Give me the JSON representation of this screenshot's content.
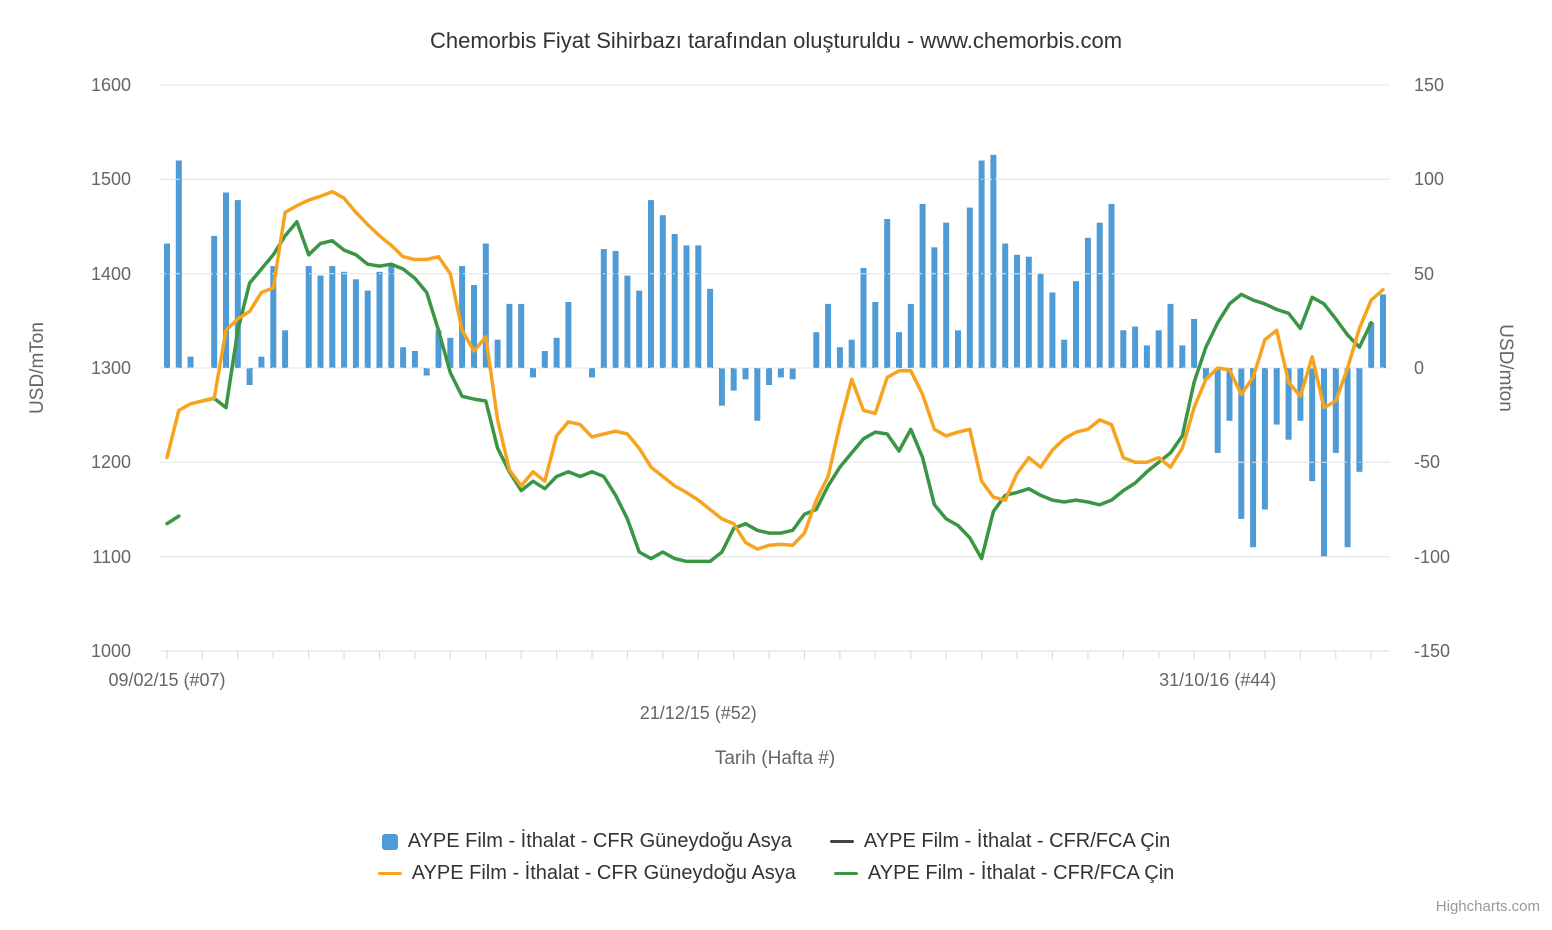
{
  "title": "Chemorbis Fiyat Sihirbazı tarafından oluşturuldu - www.chemorbis.com",
  "credits": "Highcharts.com",
  "chart_data": {
    "type": "combo-column-line",
    "colors": {
      "grid": "#E6E6E6",
      "axis_line": "#CCD6EB"
    },
    "xaxis": {
      "title": "Tarih (Hafta #)",
      "tick_labels": [
        {
          "index": 0,
          "text": "09/02/15 (#07)",
          "row": 0
        },
        {
          "index": 45,
          "text": "21/12/15 (#52)",
          "row": 1
        },
        {
          "index": 89,
          "text": "31/10/16 (#44)",
          "row": 0
        }
      ]
    },
    "yaxis_left": {
      "title": "USD/mTon",
      "min": 1000,
      "max": 1600,
      "ticks": [
        1000,
        1100,
        1200,
        1300,
        1400,
        1500,
        1600
      ]
    },
    "yaxis_right": {
      "title": "USD/mton",
      "min": -150,
      "max": 150,
      "ticks": [
        -150,
        -100,
        -50,
        0,
        50,
        100,
        150
      ]
    },
    "series": [
      {
        "name": "AYPE Film - İthalat - CFR Güneydoğu Asya",
        "type": "column",
        "axis": "right",
        "color": "#4F9BD5",
        "values": [
          66,
          110,
          6,
          0,
          70,
          93,
          89,
          -9,
          6,
          54,
          20,
          0,
          54,
          49,
          54,
          51,
          47,
          41,
          51,
          55,
          11,
          9,
          -4,
          20,
          16,
          54,
          44,
          66,
          15,
          34,
          34,
          -5,
          9,
          16,
          35,
          0,
          -5,
          63,
          62,
          49,
          41,
          89,
          81,
          71,
          65,
          65,
          42,
          -20,
          -12,
          -6,
          -28,
          -9,
          -5,
          -6,
          0,
          19,
          34,
          11,
          15,
          53,
          35,
          79,
          19,
          34,
          87,
          64,
          77,
          20,
          85,
          110,
          113,
          66,
          60,
          59,
          50,
          40,
          15,
          46,
          69,
          77,
          87,
          20,
          22,
          12,
          20,
          34,
          12,
          26,
          -6,
          -45,
          -28,
          -80,
          -95,
          -75,
          -30,
          -38,
          -28,
          -60,
          -100,
          -45,
          -95,
          -55,
          24,
          39
        ]
      },
      {
        "name": "AYPE Film - İthalat - CFR/FCA Çin",
        "type": "line",
        "axis": "left",
        "color": "#3A9645",
        "values": [
          1135,
          1143,
          null,
          1265,
          1268,
          1258,
          1340,
          1390,
          1405,
          1420,
          1440,
          1455,
          1420,
          1432,
          1435,
          1425,
          1420,
          1410,
          1408,
          1410,
          1405,
          1395,
          1380,
          1340,
          1295,
          1270,
          1267,
          1265,
          1215,
          1190,
          1170,
          1180,
          1172,
          1185,
          1190,
          1185,
          1190,
          1185,
          1165,
          1140,
          1105,
          1098,
          1105,
          1098,
          1095,
          1095,
          1095,
          1105,
          1130,
          1135,
          1128,
          1125,
          1125,
          1128,
          1145,
          1150,
          1175,
          1195,
          1210,
          1225,
          1232,
          1230,
          1212,
          1235,
          1205,
          1155,
          1140,
          1133,
          1120,
          1098,
          1148,
          1165,
          1168,
          1172,
          1165,
          1160,
          1158,
          1160,
          1158,
          1155,
          1160,
          1170,
          1178,
          1190,
          1200,
          1210,
          1228,
          1285,
          1322,
          1348,
          1368,
          1378,
          1372,
          1368,
          1362,
          1358,
          1342,
          1375,
          1368,
          1352,
          1335,
          1322,
          1348,
          null
        ]
      },
      {
        "name": "AYPE Film - İthalat - CFR Güneydoğu Asya",
        "type": "line",
        "axis": "left",
        "color": "#F6A41F",
        "values": [
          1205,
          1255,
          1262,
          1265,
          1268,
          1340,
          1352,
          1360,
          1380,
          1385,
          1465,
          1472,
          1478,
          1482,
          1487,
          1480,
          1465,
          1452,
          1440,
          1430,
          1418,
          1415,
          1415,
          1418,
          1400,
          1340,
          1318,
          1333,
          1245,
          1192,
          1175,
          1190,
          1180,
          1228,
          1243,
          1240,
          1227,
          1230,
          1233,
          1230,
          1215,
          1195,
          1185,
          1175,
          1168,
          1160,
          1150,
          1140,
          1135,
          1115,
          1108,
          1112,
          1113,
          1112,
          1125,
          1160,
          1185,
          1240,
          1288,
          1255,
          1252,
          1290,
          1297,
          1297,
          1272,
          1235,
          1228,
          1232,
          1235,
          1180,
          1163,
          1160,
          1188,
          1205,
          1195,
          1213,
          1225,
          1232,
          1235,
          1245,
          1240,
          1205,
          1200,
          1200,
          1205,
          1195,
          1215,
          1258,
          1288,
          1300,
          1298,
          1272,
          1290,
          1330,
          1340,
          1285,
          1270,
          1312,
          1258,
          1265,
          1300,
          1342,
          1372,
          1383
        ]
      }
    ],
    "legend": [
      {
        "marker": "square",
        "color": "#4F9BD5",
        "label": "AYPE Film - İthalat - CFR Güneydoğu Asya"
      },
      {
        "marker": "line",
        "color": "#434348",
        "label": "AYPE Film - İthalat - CFR/FCA Çin"
      },
      {
        "marker": "line",
        "color": "#F6A41F",
        "label": "AYPE Film - İthalat - CFR Güneydoğu Asya"
      },
      {
        "marker": "line",
        "color": "#3A9645",
        "label": "AYPE Film - İthalat - CFR/FCA Çin"
      }
    ]
  }
}
